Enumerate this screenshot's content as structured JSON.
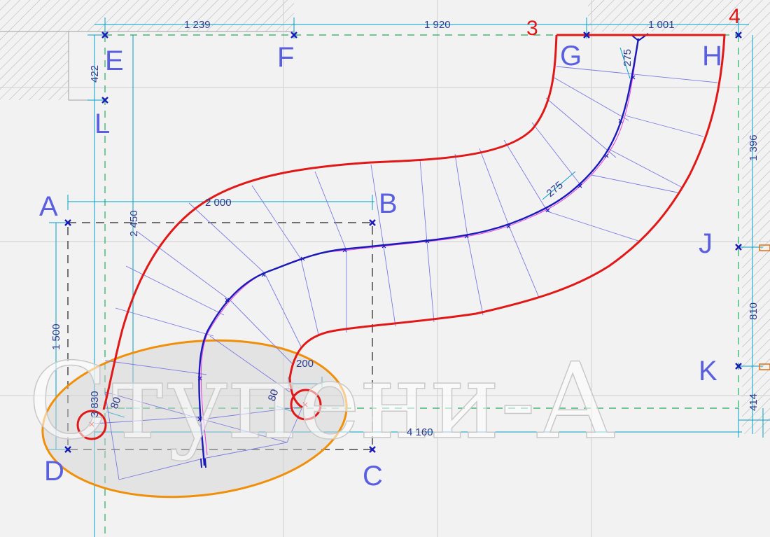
{
  "points": {
    "A": "A",
    "B": "B",
    "C": "C",
    "D": "D",
    "E": "E",
    "F": "F",
    "G": "G",
    "H": "H",
    "J": "J",
    "K": "K",
    "L": "L"
  },
  "corner_numbers": {
    "n3": "3",
    "n4": "4"
  },
  "dimensions": {
    "top_ef": "1 239",
    "top_fg": "1 920",
    "top_gh": "1 001",
    "left_el": "422",
    "ab": "2 000",
    "e_vertical": "2 450",
    "a_vertical": "1 500",
    "d_vertical": "3 830",
    "right_hj": "1 396",
    "right_jk": "810",
    "right_k": "414",
    "bottom_length": "4 160",
    "tread_top": "275",
    "tread_mid": "275",
    "offset_left": "80",
    "offset_right": "80",
    "end_width": "200"
  },
  "watermark": "Ступени-А",
  "colors": {
    "stair_outline": "#e01818",
    "walk_line": "#1a1ab8",
    "highlight_ellipse": "#f0900a",
    "dimension_line": "#00a0c8",
    "point_label": "#5a5fe0"
  }
}
